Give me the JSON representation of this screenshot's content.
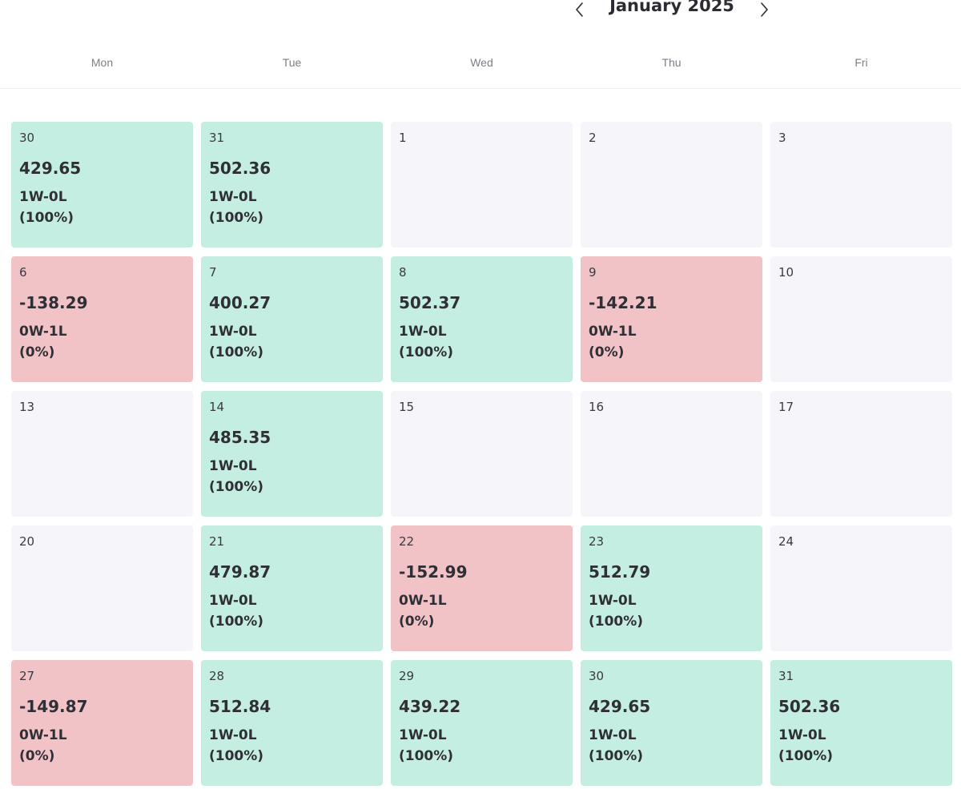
{
  "calendar": {
    "month_label": "January 2025",
    "weekdays": [
      "Mon",
      "Tue",
      "Wed",
      "Thu",
      "Fri"
    ],
    "colors": {
      "win": "#c5eee2",
      "loss": "#f1c3c6",
      "empty": "#f6f6fa",
      "text": "#2f2f36"
    },
    "weeks": [
      [
        {
          "day": "30",
          "status": "win",
          "pnl": "429.65",
          "record": "1W-0L",
          "pct": "(100%)"
        },
        {
          "day": "31",
          "status": "win",
          "pnl": "502.36",
          "record": "1W-0L",
          "pct": "(100%)"
        },
        {
          "day": "1",
          "status": "empty"
        },
        {
          "day": "2",
          "status": "empty"
        },
        {
          "day": "3",
          "status": "empty"
        }
      ],
      [
        {
          "day": "6",
          "status": "loss",
          "pnl": "-138.29",
          "record": "0W-1L",
          "pct": "(0%)"
        },
        {
          "day": "7",
          "status": "win",
          "pnl": "400.27",
          "record": "1W-0L",
          "pct": "(100%)"
        },
        {
          "day": "8",
          "status": "win",
          "pnl": "502.37",
          "record": "1W-0L",
          "pct": "(100%)"
        },
        {
          "day": "9",
          "status": "loss",
          "pnl": "-142.21",
          "record": "0W-1L",
          "pct": "(0%)"
        },
        {
          "day": "10",
          "status": "empty"
        }
      ],
      [
        {
          "day": "13",
          "status": "empty"
        },
        {
          "day": "14",
          "status": "win",
          "pnl": "485.35",
          "record": "1W-0L",
          "pct": "(100%)"
        },
        {
          "day": "15",
          "status": "empty"
        },
        {
          "day": "16",
          "status": "empty"
        },
        {
          "day": "17",
          "status": "empty"
        }
      ],
      [
        {
          "day": "20",
          "status": "empty"
        },
        {
          "day": "21",
          "status": "win",
          "pnl": "479.87",
          "record": "1W-0L",
          "pct": "(100%)"
        },
        {
          "day": "22",
          "status": "loss",
          "pnl": "-152.99",
          "record": "0W-1L",
          "pct": "(0%)"
        },
        {
          "day": "23",
          "status": "win",
          "pnl": "512.79",
          "record": "1W-0L",
          "pct": "(100%)"
        },
        {
          "day": "24",
          "status": "empty"
        }
      ],
      [
        {
          "day": "27",
          "status": "loss",
          "pnl": "-149.87",
          "record": "0W-1L",
          "pct": "(0%)"
        },
        {
          "day": "28",
          "status": "win",
          "pnl": "512.84",
          "record": "1W-0L",
          "pct": "(100%)"
        },
        {
          "day": "29",
          "status": "win",
          "pnl": "439.22",
          "record": "1W-0L",
          "pct": "(100%)"
        },
        {
          "day": "30",
          "status": "win",
          "pnl": "429.65",
          "record": "1W-0L",
          "pct": "(100%)"
        },
        {
          "day": "31",
          "status": "win",
          "pnl": "502.36",
          "record": "1W-0L",
          "pct": "(100%)"
        }
      ]
    ]
  },
  "icons": {
    "prev": "chevron-left-icon",
    "next": "chevron-right-icon"
  }
}
